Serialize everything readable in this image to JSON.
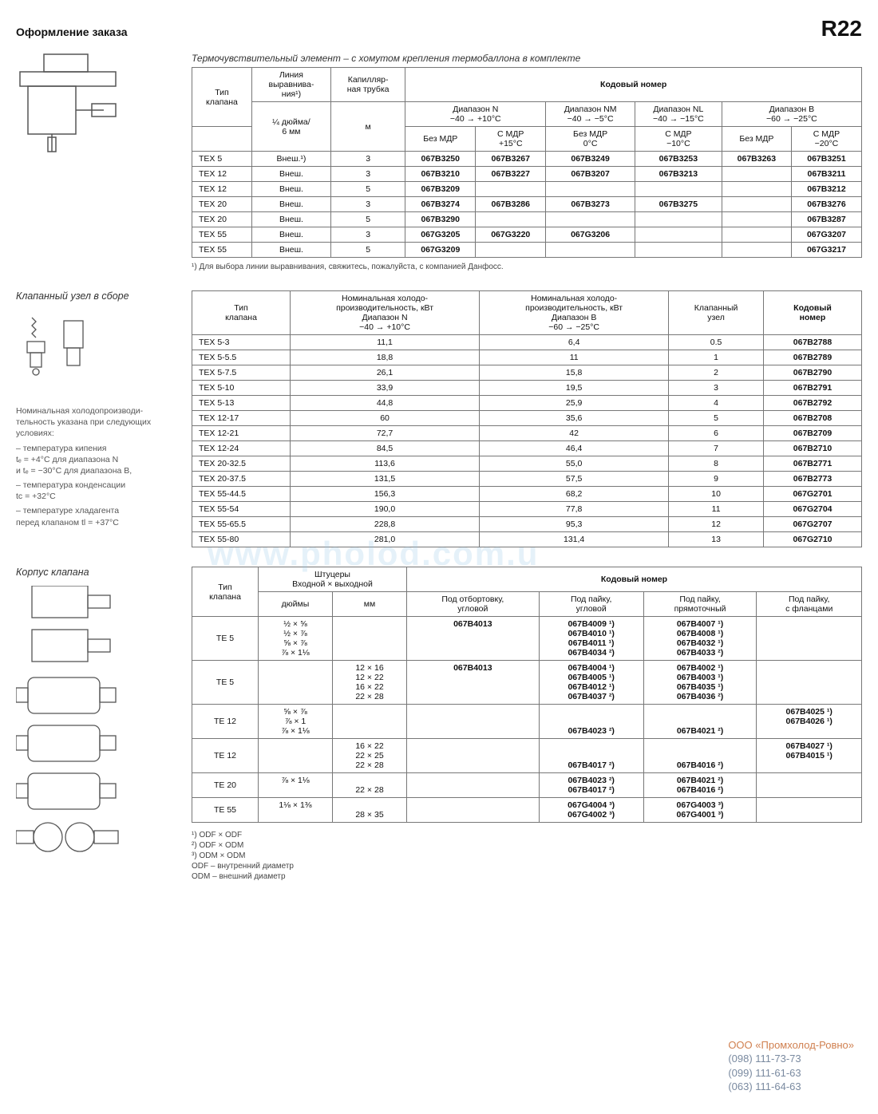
{
  "header": {
    "title": "Оформление заказа",
    "badge": "R22"
  },
  "section1": {
    "title": "Термочувствительный элемент – с хомутом крепления термобаллона в комплекте",
    "col_tip": "Тип\nклапана",
    "col_line": "Линия\nвыравнива-\nния¹)",
    "col_cap": "Капилляр-\nная трубка",
    "col_code": "Кодовый номер",
    "sub_line": "¼ дюйма/\n6 мм",
    "sub_cap": "м",
    "range_n": "Диапазон N\n−40 → +10°C",
    "range_nm": "Диапазон NM\n−40 → −5°C",
    "range_nl": "Диапазон NL\n−40 → −15°C",
    "range_b": "Диапазон B\n−60 → −25°C",
    "h_bez": "Без МДР",
    "h_mdr15": "С МДР\n+15°C",
    "h_bez0": "Без МДР\n0°C",
    "h_mdr10": "С МДР\n−10°C",
    "h_bez2": "Без МДР",
    "h_mdr20": "С МДР\n−20°C",
    "rows": [
      [
        "TEX 5",
        "Внеш.¹)",
        "3",
        "067B3250",
        "067B3267",
        "067B3249",
        "067B3253",
        "067B3263",
        "067B3251"
      ],
      [
        "TEX 12",
        "Внеш.",
        "3",
        "067B3210",
        "067B3227",
        "067B3207",
        "067B3213",
        "",
        "067B3211"
      ],
      [
        "TEX 12",
        "Внеш.",
        "5",
        "067B3209",
        "",
        "",
        "",
        "",
        "067B3212"
      ],
      [
        "TEX 20",
        "Внеш.",
        "3",
        "067B3274",
        "067B3286",
        "067B3273",
        "067B3275",
        "",
        "067B3276"
      ],
      [
        "TEX 20",
        "Внеш.",
        "5",
        "067B3290",
        "",
        "",
        "",
        "",
        "067B3287"
      ],
      [
        "TEX 55",
        "Внеш.",
        "3",
        "067G3205",
        "067G3220",
        "067G3206",
        "",
        "",
        "067G3207"
      ],
      [
        "TEX 55",
        "Внеш.",
        "5",
        "067G3209",
        "",
        "",
        "",
        "",
        "067G3217"
      ]
    ],
    "footnote": "¹)   Для выбора линии выравнивания, свяжитесь, пожалуйста, с компанией Данфосс."
  },
  "section2": {
    "title": "Клапанный узел в сборе",
    "note1": "Номинальная холодопроизводи-\nтельность указана при следующих\nусловиях:",
    "note2": "– температура кипения\n  tₑ = +4°C для диапазона N\n  и tₑ = −30°C для диапазона В,",
    "note3": "– температура конденсации\n  tc = +32°C",
    "note4": "– температуре хладагента\n  перед клапаном tl = +37°C",
    "col_tip": "Тип\nклапана",
    "col_n": "Номинальная холодо-\nпроизводительность, кВт\nДиапазон N\n−40 → +10°C",
    "col_b": "Номинальная холодо-\nпроизводительность, кВт\nДиапазон B\n−60 → −25°C",
    "col_uzel": "Клапанный\nузел",
    "col_code": "Кодовый\nномер",
    "rows": [
      [
        "TEX 5-3",
        "11,1",
        "6,4",
        "0.5",
        "067B2788"
      ],
      [
        "TEX 5-5.5",
        "18,8",
        "11",
        "1",
        "067B2789"
      ],
      [
        "TEX 5-7.5",
        "26,1",
        "15,8",
        "2",
        "067B2790"
      ],
      [
        "TEX 5-10",
        "33,9",
        "19,5",
        "3",
        "067B2791"
      ],
      [
        "TEX 5-13",
        "44,8",
        "25,9",
        "4",
        "067B2792"
      ],
      [
        "TEX 12-17",
        "60",
        "35,6",
        "5",
        "067B2708"
      ],
      [
        "TEX 12-21",
        "72,7",
        "42",
        "6",
        "067B2709"
      ],
      [
        "TEX 12-24",
        "84,5",
        "46,4",
        "7",
        "067B2710"
      ],
      [
        "TEX 20-32.5",
        "113,6",
        "55,0",
        "8",
        "067B2771"
      ],
      [
        "TEX 20-37.5",
        "131,5",
        "57,5",
        "9",
        "067B2773"
      ],
      [
        "TEX 55-44.5",
        "156,3",
        "68,2",
        "10",
        "067G2701"
      ],
      [
        "TEX 55-54",
        "190,0",
        "77,8",
        "11",
        "067G2704"
      ],
      [
        "TEX 55-65.5",
        "228,8",
        "95,3",
        "12",
        "067G2707"
      ],
      [
        "TEX 55-80",
        "281,0",
        "131,4",
        "13",
        "067G2710"
      ]
    ]
  },
  "section3": {
    "title": "Корпус клапана",
    "col_tip": "Тип\nклапана",
    "col_fit": "Штуцеры\nВходной × выходной",
    "col_in": "дюймы",
    "col_mm": "мм",
    "col_code": "Кодовый номер",
    "c1": "Под отбортовку,\nугловой",
    "c2": "Под пайку,\nугловой",
    "c3": "Под пайку,\nпрямоточный",
    "c4": "Под пайку,\nс фланцами",
    "rows": [
      {
        "t": "TE 5",
        "in": "½ × ⅝\n½ × ⅞\n⅝ × ⅞\n⅞ × 1⅛",
        "mm": "",
        "c1": "067B4013",
        "c2": "067B4009 ¹)\n067B4010 ¹)\n067B4011 ¹)\n067B4034 ²)",
        "c3": "067B4007 ¹)\n067B4008 ¹)\n067B4032 ¹)\n067B4033 ²)",
        "c4": ""
      },
      {
        "t": "TE 5",
        "in": "",
        "mm": "12 × 16\n12 × 22\n16 × 22\n22 × 28",
        "c1": "067B4013",
        "c2": "067B4004 ¹)\n067B4005 ¹)\n067B4012 ¹)\n067B4037 ²)",
        "c3": "067B4002 ¹)\n067B4003 ¹)\n067B4035 ¹)\n067B4036 ²)",
        "c4": ""
      },
      {
        "t": "TE 12",
        "in": "⅝ × ⅞\n⅞ × 1\n⅞ × 1⅛",
        "mm": "",
        "c1": "",
        "c2": "\n\n067B4023 ²)",
        "c3": "\n\n067B4021 ²)",
        "c4": "067B4025  ¹)\n067B4026  ¹)"
      },
      {
        "t": "TE 12",
        "in": "",
        "mm": "16 × 22\n22 × 25\n22 × 28",
        "c1": "",
        "c2": "\n\n067B4017 ²)",
        "c3": "\n\n067B4016 ²)",
        "c4": "067B4027 ¹)\n067B4015 ¹)"
      },
      {
        "t": "TE 20",
        "in": "⅞ × 1⅛",
        "mm": "\n22 × 28",
        "c1": "",
        "c2": "067B4023 ²)\n067B4017 ²)",
        "c3": "067B4021 ²)\n067B4016 ²)",
        "c4": ""
      },
      {
        "t": "TE 55",
        "in": "1⅛ × 1⅜",
        "mm": "\n28 × 35",
        "c1": "",
        "c2": "067G4004 ³)\n067G4002 ³)",
        "c3": "067G4003 ³)\n067G4001 ³)",
        "c4": ""
      }
    ],
    "fn1": "¹) ODF × ODF",
    "fn2": "²) ODF × ODM",
    "fn3": "³) ODM × ODM",
    "fn4": "ODF   – внутренний диаметр",
    "fn5": "ODM  – внешний диаметр"
  },
  "contact": {
    "firm": "ООО «Промхолод-Ровно»",
    "p1": "(098) 111-73-73",
    "p2": "(099) 111-61-63",
    "p3": "(063) 111-64-63"
  },
  "watermark": "www.pholod.com.u"
}
